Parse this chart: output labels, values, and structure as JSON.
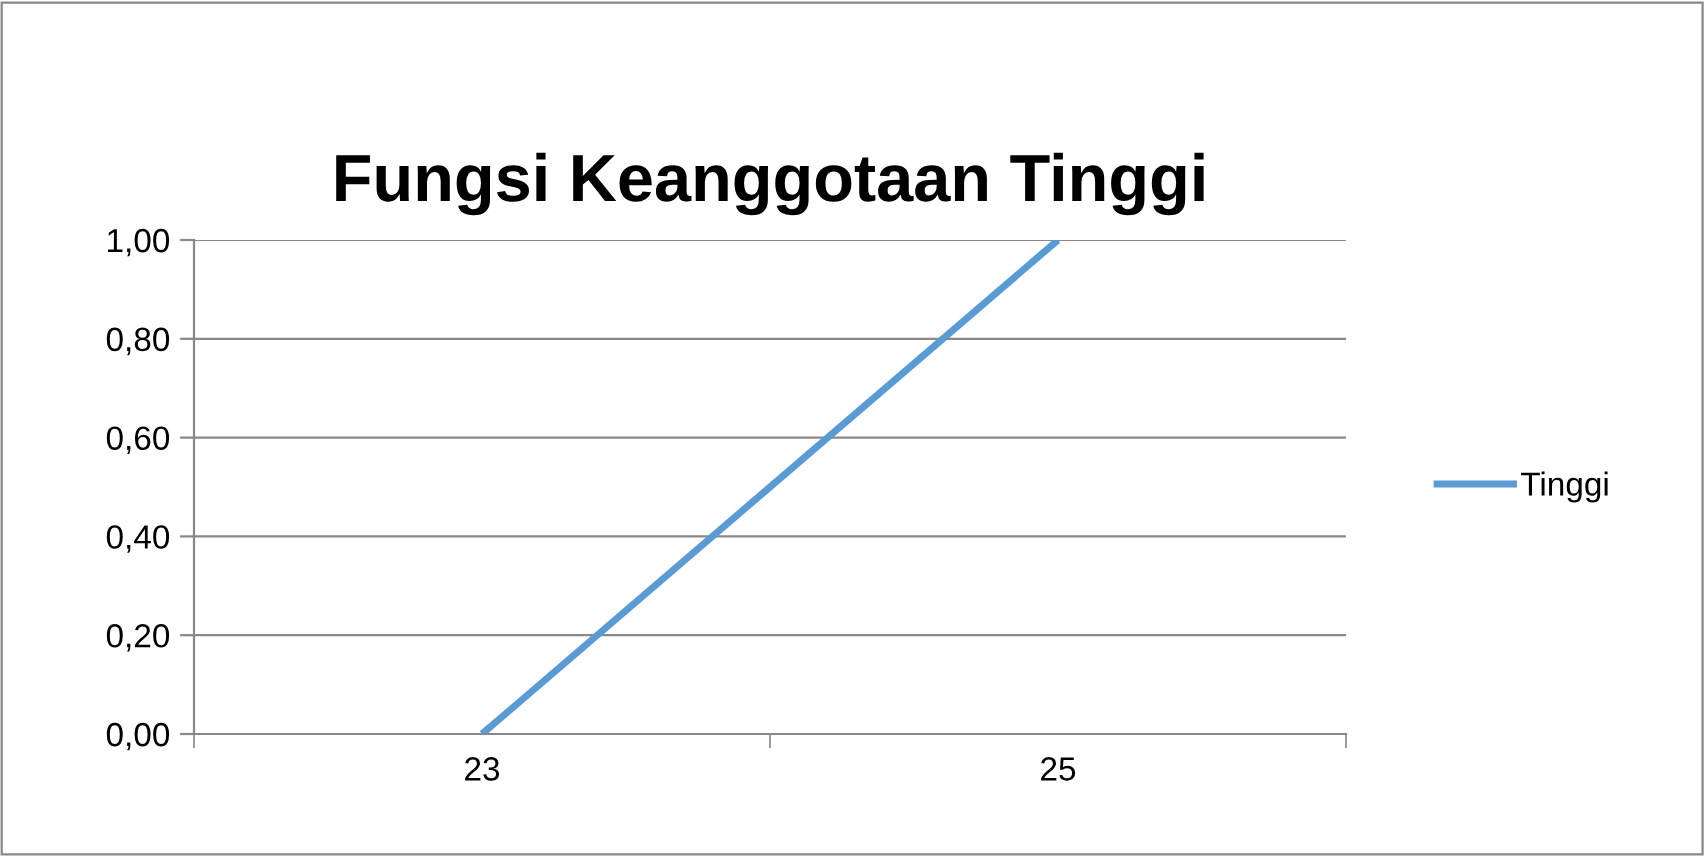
{
  "chart_data": {
    "type": "line",
    "title": "Fungsi Keanggotaan Tinggi",
    "categories": [
      "23",
      "25"
    ],
    "series": [
      {
        "name": "Tinggi",
        "color": "#5b9bd5",
        "values": [
          0,
          1
        ]
      }
    ],
    "ylim": [
      0,
      1
    ],
    "yticks": [
      {
        "value": 0,
        "label": "0,00"
      },
      {
        "value": 0.2,
        "label": "0,20"
      },
      {
        "value": 0.4,
        "label": "0,40"
      },
      {
        "value": 0.6,
        "label": "0,60"
      },
      {
        "value": 0.8,
        "label": "0,80"
      },
      {
        "value": 1,
        "label": "1,00"
      }
    ],
    "grid": "y",
    "legend": "right",
    "marker": "none",
    "line_style": "solid"
  }
}
